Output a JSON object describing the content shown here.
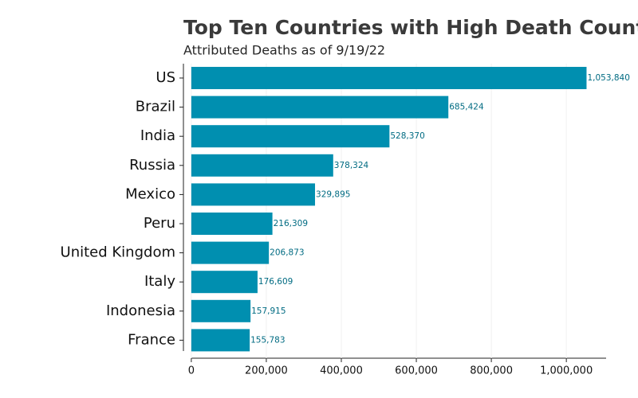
{
  "chart_data": {
    "type": "barh",
    "title": "Top Ten Countries with High Death Counts",
    "subtitle": "Attributed Deaths as of 9/19/22",
    "categories": [
      "US",
      "Brazil",
      "India",
      "Russia",
      "Mexico",
      "Peru",
      "United Kingdom",
      "Italy",
      "Indonesia",
      "France"
    ],
    "values": [
      1053840,
      685424,
      528370,
      378324,
      329895,
      216309,
      206873,
      176609,
      157915,
      155783
    ],
    "value_labels": [
      "1,053,840",
      "685,424",
      "528,370",
      "378,324",
      "329,895",
      "216,309",
      "206,873",
      "176,609",
      "157,915",
      "155,783"
    ],
    "color": "#008fb0",
    "label_color": "#006b82",
    "xlim": [
      -21000,
      1106000
    ],
    "xticks": [
      0,
      {
        "value": 200000,
        "label": "200,000"
      },
      {
        "value": 400000,
        "label": "400,000"
      },
      {
        "value": 600000,
        "label": "600,000"
      },
      {
        "value": 800000,
        "label": "800,000"
      },
      {
        "value": 1000000,
        "label": "1,000,000"
      }
    ],
    "grid": true
  }
}
